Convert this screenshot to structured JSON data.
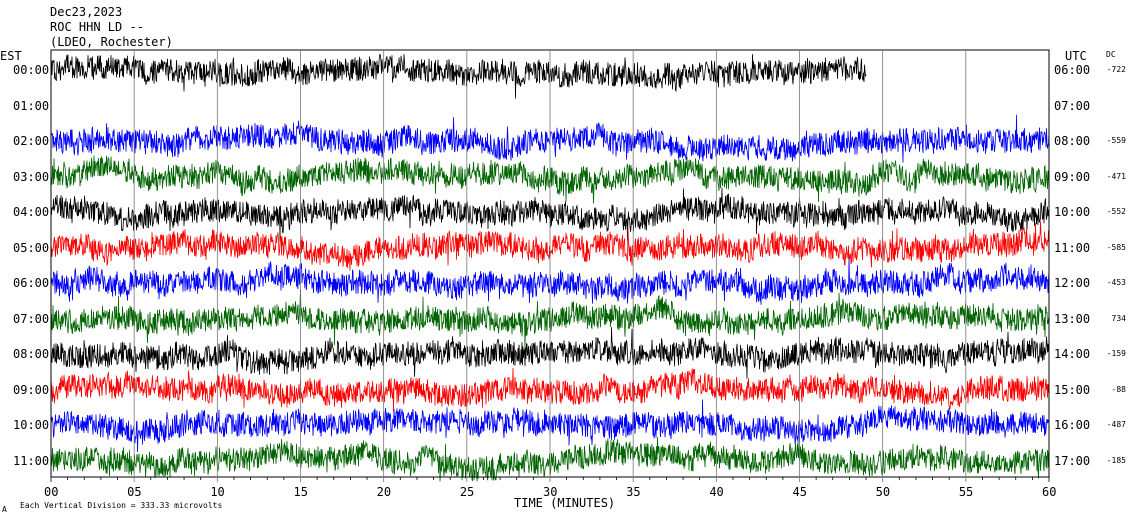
{
  "header": {
    "date": "Dec23,2023",
    "station": "ROC HHN LD --",
    "network": "(LDEO, Rochester)"
  },
  "left_zone_label": "EST",
  "right_zone_label": "UTC",
  "dc_label": "DC",
  "footer": {
    "scale_note": "Each Vertical Division =  333.33 microvolts",
    "corner_mark": "A"
  },
  "colors": {
    "black": "#000000",
    "blue": "#0000ff",
    "green": "#006400",
    "red": "#ff0000",
    "grid": "#777777"
  },
  "chart_data": {
    "type": "line",
    "title": "",
    "xlabel": "TIME (MINUTES)",
    "ylabel": "",
    "xlim": [
      0,
      60
    ],
    "x_ticks": [
      "00",
      "05",
      "10",
      "15",
      "20",
      "25",
      "30",
      "35",
      "40",
      "45",
      "50",
      "55",
      "60"
    ],
    "y_unit": "microvolts per vertical division",
    "vertical_division_microvolts": 333.33,
    "grid": true,
    "series": [
      {
        "left_label": "00:00",
        "right_label": "06:00",
        "dc": "-722",
        "color": "black",
        "end_minute": 49
      },
      {
        "left_label": "01:00",
        "right_label": "07:00",
        "dc": "",
        "color": "",
        "end_minute": 0
      },
      {
        "left_label": "02:00",
        "right_label": "08:00",
        "dc": "-559",
        "color": "blue",
        "end_minute": 60
      },
      {
        "left_label": "03:00",
        "right_label": "09:00",
        "dc": "-471",
        "color": "green",
        "end_minute": 60
      },
      {
        "left_label": "04:00",
        "right_label": "10:00",
        "dc": "-552",
        "color": "black",
        "end_minute": 60
      },
      {
        "left_label": "05:00",
        "right_label": "11:00",
        "dc": "-585",
        "color": "red",
        "end_minute": 60
      },
      {
        "left_label": "06:00",
        "right_label": "12:00",
        "dc": "-453",
        "color": "blue",
        "end_minute": 60
      },
      {
        "left_label": "07:00",
        "right_label": "13:00",
        "dc": "734",
        "color": "green",
        "end_minute": 60
      },
      {
        "left_label": "08:00",
        "right_label": "14:00",
        "dc": "-159",
        "color": "black",
        "end_minute": 60
      },
      {
        "left_label": "09:00",
        "right_label": "15:00",
        "dc": "-88",
        "color": "red",
        "end_minute": 60
      },
      {
        "left_label": "10:00",
        "right_label": "16:00",
        "dc": "-487",
        "color": "blue",
        "end_minute": 60
      },
      {
        "left_label": "11:00",
        "right_label": "17:00",
        "dc": "-185",
        "color": "green",
        "end_minute": 60
      }
    ]
  }
}
